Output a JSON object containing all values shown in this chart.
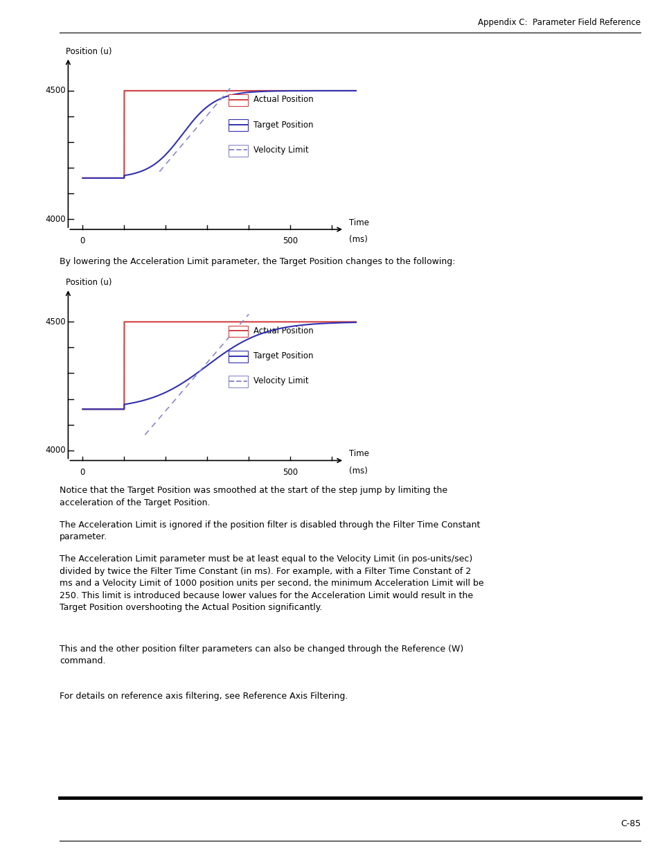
{
  "header_text": "Appendix C:  Parameter Field Reference",
  "chart_ylabel": "Position (u)",
  "chart_xlabel1": "Time",
  "chart_xlabel2": "(ms)",
  "actual_color": "#d04040",
  "target_color": "#3030b0",
  "velocity_color": "#8888cc",
  "legend_actual": "Actual Position",
  "legend_target": "Target Position",
  "legend_velocity": "Velocity Limit",
  "between_text": "By lowering the Acceleration Limit parameter, the Target Position changes to the following:",
  "para1": "Notice that the Target Position was smoothed at the start of the step jump by limiting the\nacceleration of the Target Position.",
  "para2": "The Acceleration Limit is ignored if the position filter is disabled through the Filter Time Constant\nparameter.",
  "para3": "The Acceleration Limit parameter must be at least equal to the Velocity Limit (in pos-units/sec)\ndivided by twice the Filter Time Constant (in ms). For example, with a Filter Time Constant of 2\nms and a Velocity Limit of 1000 position units per second, the minimum Acceleration Limit will be\n250. This limit is introduced because lower values for the Acceleration Limit would result in the\nTarget Position overshooting the Actual Position significantly.",
  "para4": "This and the other position filter parameters can also be changed through the Reference (W)\ncommand.",
  "para5": "For details on reference axis filtering, see Reference Axis Filtering.",
  "footer_text": "C-85",
  "bg_color": "#ffffff"
}
